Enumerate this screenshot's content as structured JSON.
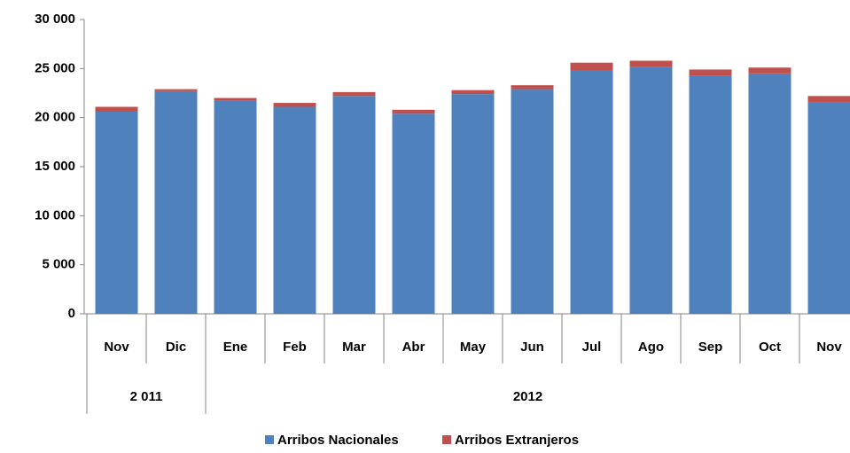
{
  "chart_data": {
    "type": "stacked_bar",
    "categories": [
      "Nov",
      "Dic",
      "Ene",
      "Feb",
      "Mar",
      "Abr",
      "May",
      "Jun",
      "Jul",
      "Ago",
      "Sep",
      "Oct",
      "Nov"
    ],
    "groups": [
      {
        "label": "2 011",
        "start": 0,
        "end": 1
      },
      {
        "label": "2012",
        "start": 2,
        "end": 12
      }
    ],
    "series": [
      {
        "name": "Arribos Nacionales",
        "color": "#4f81bd",
        "values": [
          20600,
          22700,
          21700,
          21100,
          22200,
          20400,
          22400,
          22900,
          24800,
          25200,
          24300,
          24500,
          21600
        ]
      },
      {
        "name": "Arribos Extranjeros",
        "color": "#c0504d",
        "values": [
          500,
          200,
          300,
          400,
          400,
          400,
          400,
          400,
          800,
          600,
          600,
          600,
          600
        ]
      }
    ],
    "ylim": [
      0,
      30000
    ],
    "yticks": [
      0,
      {
        "value": 5000,
        "label": "5 000"
      },
      {
        "value": 10000,
        "label": "10 000"
      },
      {
        "value": 15000,
        "label": "15 000"
      },
      {
        "value": 20000,
        "label": "20 000"
      },
      {
        "value": 25000,
        "label": "25 000"
      },
      {
        "value": 30000,
        "label": "30 000"
      }
    ],
    "legend": "bottom",
    "grid": false
  }
}
